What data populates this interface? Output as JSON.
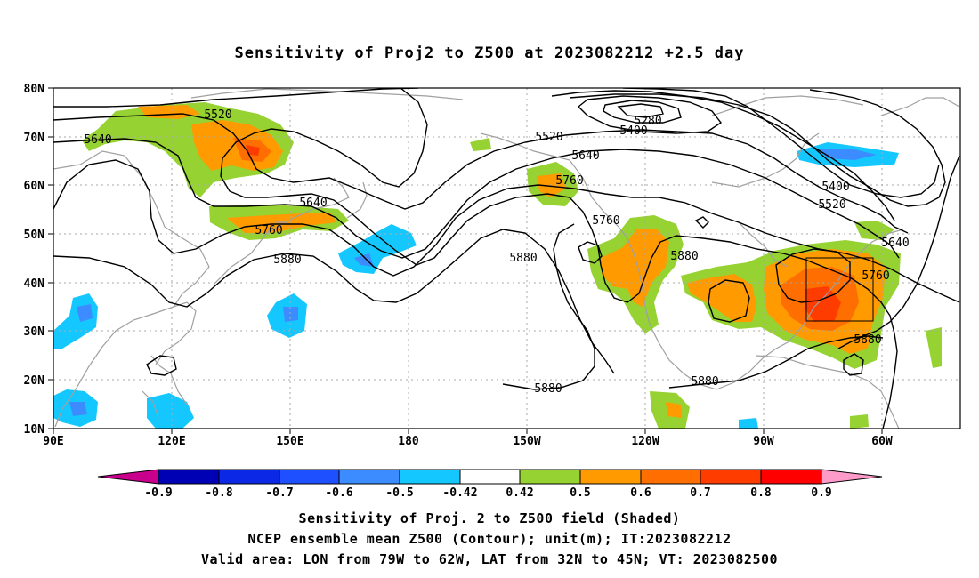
{
  "title": "Sensitivity of Proj2 to Z500 at 2023082212 +2.5 day",
  "axes": {
    "lat_labels": [
      "80N",
      "70N",
      "60N",
      "50N",
      "40N",
      "30N",
      "20N",
      "10N"
    ],
    "lon_labels": [
      "90E",
      "120E",
      "150E",
      "180",
      "150W",
      "120W",
      "90W",
      "60W"
    ]
  },
  "contours": {
    "labels": [
      {
        "text": "5520"
      },
      {
        "text": "5640"
      },
      {
        "text": "5280"
      },
      {
        "text": "5400"
      },
      {
        "text": "5520"
      },
      {
        "text": "5640"
      },
      {
        "text": "5760"
      },
      {
        "text": "5640"
      },
      {
        "text": "5760"
      },
      {
        "text": "5880"
      },
      {
        "text": "5880"
      },
      {
        "text": "5760"
      },
      {
        "text": "5880"
      },
      {
        "text": "5400"
      },
      {
        "text": "5520"
      },
      {
        "text": "5640"
      },
      {
        "text": "5760"
      },
      {
        "text": "5880"
      },
      {
        "text": "5880"
      },
      {
        "text": "5880"
      }
    ]
  },
  "colorbar": {
    "colors": [
      "#c8008c",
      "#0000b4",
      "#0a28e6",
      "#1e50ff",
      "#3c8cff",
      "#14c8ff",
      "#ffffff",
      "#96d232",
      "#ff9b00",
      "#ff6e00",
      "#ff3c00",
      "#ff0000",
      "#ff9bc8"
    ],
    "labels": [
      "-0.9",
      "-0.8",
      "-0.7",
      "-0.6",
      "-0.5",
      "-0.42",
      "0.42",
      "0.5",
      "0.6",
      "0.7",
      "0.8",
      "0.9"
    ]
  },
  "captions": {
    "line1": "Sensitivity of Proj. 2 to Z500 field (Shaded)",
    "line2": "NCEP ensemble mean Z500 (Contour); unit(m); IT:2023082212",
    "line3": "Valid area: LON from 79W to 62W, LAT from 32N to 45N; VT: 2023082500"
  }
}
